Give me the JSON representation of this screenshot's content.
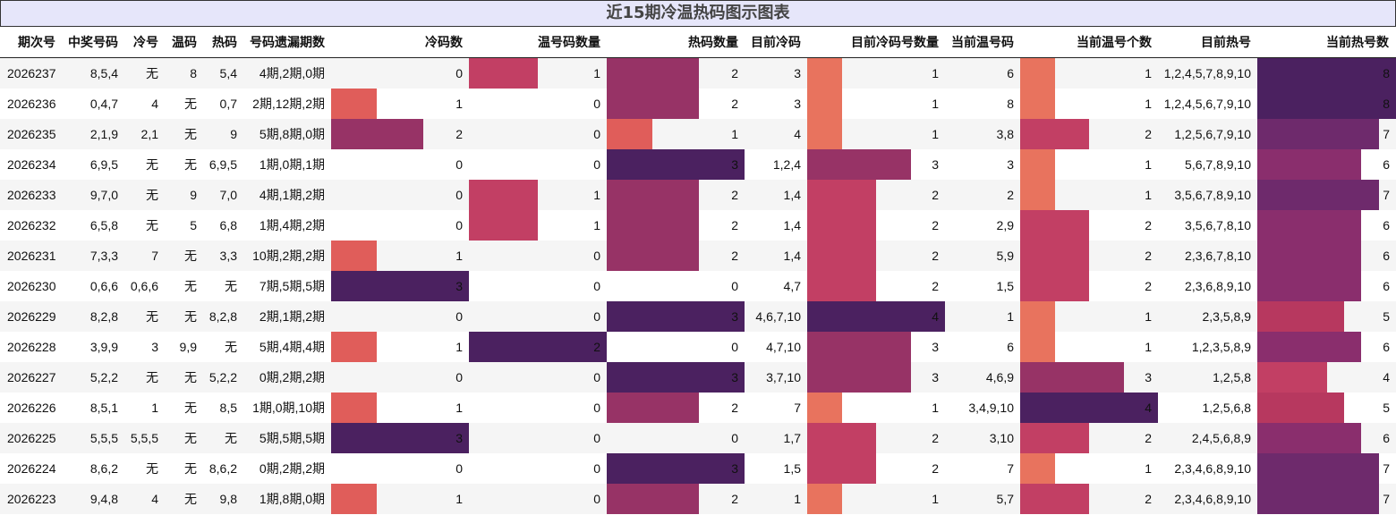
{
  "title": "近15期冷温热码图示图表",
  "headers": {
    "period": "期次号",
    "draw": "中奖号码",
    "cold": "冷号",
    "warm": "温码",
    "hot": "热码",
    "miss": "号码遗漏期数",
    "cold_count": "冷码数",
    "warm_count": "温号码数量",
    "hot_count": "热码数量",
    "cur_cold": "目前冷码",
    "cur_cold_count": "目前冷码号数量",
    "cur_warm": "当前温号码",
    "cur_warm_count": "当前温号个数",
    "cur_hot": "目前热号",
    "cur_hot_count": "当前热号数"
  },
  "colors": {
    "c1": "#e05d5a",
    "c1b": "#e8735e",
    "c2": "#c23f64",
    "c3": "#973366",
    "c4": "#4b2160",
    "hot6": "#8a2e6d",
    "hot7": "#6e2a6c",
    "hot8": "#4b2160",
    "hot5": "#b7385f",
    "hot4": "#c23f64",
    "title_bg": "#e6e6fa"
  },
  "rows": [
    {
      "period": "2026237",
      "draw": "8,5,4",
      "cold": "无",
      "warm": "8",
      "hot": "5,4",
      "miss": "4期,2期,0期",
      "cold_count": 0,
      "warm_count": 1,
      "hot_count": 2,
      "cur_cold": "3",
      "cur_cold_count": 1,
      "cur_warm": "6",
      "cur_warm_count": 1,
      "cur_hot": "1,2,4,5,7,8,9,10",
      "cur_hot_count": 8
    },
    {
      "period": "2026236",
      "draw": "0,4,7",
      "cold": "4",
      "warm": "无",
      "hot": "0,7",
      "miss": "2期,12期,2期",
      "cold_count": 1,
      "warm_count": 0,
      "hot_count": 2,
      "cur_cold": "3",
      "cur_cold_count": 1,
      "cur_warm": "8",
      "cur_warm_count": 1,
      "cur_hot": "1,2,4,5,6,7,9,10",
      "cur_hot_count": 8
    },
    {
      "period": "2026235",
      "draw": "2,1,9",
      "cold": "2,1",
      "warm": "无",
      "hot": "9",
      "miss": "5期,8期,0期",
      "cold_count": 2,
      "warm_count": 0,
      "hot_count": 1,
      "cur_cold": "4",
      "cur_cold_count": 1,
      "cur_warm": "3,8",
      "cur_warm_count": 2,
      "cur_hot": "1,2,5,6,7,9,10",
      "cur_hot_count": 7
    },
    {
      "period": "2026234",
      "draw": "6,9,5",
      "cold": "无",
      "warm": "无",
      "hot": "6,9,5",
      "miss": "1期,0期,1期",
      "cold_count": 0,
      "warm_count": 0,
      "hot_count": 3,
      "cur_cold": "1,2,4",
      "cur_cold_count": 3,
      "cur_warm": "3",
      "cur_warm_count": 1,
      "cur_hot": "5,6,7,8,9,10",
      "cur_hot_count": 6
    },
    {
      "period": "2026233",
      "draw": "9,7,0",
      "cold": "无",
      "warm": "9",
      "hot": "7,0",
      "miss": "4期,1期,2期",
      "cold_count": 0,
      "warm_count": 1,
      "hot_count": 2,
      "cur_cold": "1,4",
      "cur_cold_count": 2,
      "cur_warm": "2",
      "cur_warm_count": 1,
      "cur_hot": "3,5,6,7,8,9,10",
      "cur_hot_count": 7
    },
    {
      "period": "2026232",
      "draw": "6,5,8",
      "cold": "无",
      "warm": "5",
      "hot": "6,8",
      "miss": "1期,4期,2期",
      "cold_count": 0,
      "warm_count": 1,
      "hot_count": 2,
      "cur_cold": "1,4",
      "cur_cold_count": 2,
      "cur_warm": "2,9",
      "cur_warm_count": 2,
      "cur_hot": "3,5,6,7,8,10",
      "cur_hot_count": 6
    },
    {
      "period": "2026231",
      "draw": "7,3,3",
      "cold": "7",
      "warm": "无",
      "hot": "3,3",
      "miss": "10期,2期,2期",
      "cold_count": 1,
      "warm_count": 0,
      "hot_count": 2,
      "cur_cold": "1,4",
      "cur_cold_count": 2,
      "cur_warm": "5,9",
      "cur_warm_count": 2,
      "cur_hot": "2,3,6,7,8,10",
      "cur_hot_count": 6
    },
    {
      "period": "2026230",
      "draw": "0,6,6",
      "cold": "0,6,6",
      "warm": "无",
      "hot": "无",
      "miss": "7期,5期,5期",
      "cold_count": 3,
      "warm_count": 0,
      "hot_count": 0,
      "cur_cold": "4,7",
      "cur_cold_count": 2,
      "cur_warm": "1,5",
      "cur_warm_count": 2,
      "cur_hot": "2,3,6,8,9,10",
      "cur_hot_count": 6
    },
    {
      "period": "2026229",
      "draw": "8,2,8",
      "cold": "无",
      "warm": "无",
      "hot": "8,2,8",
      "miss": "2期,1期,2期",
      "cold_count": 0,
      "warm_count": 0,
      "hot_count": 3,
      "cur_cold": "4,6,7,10",
      "cur_cold_count": 4,
      "cur_warm": "1",
      "cur_warm_count": 1,
      "cur_hot": "2,3,5,8,9",
      "cur_hot_count": 5
    },
    {
      "period": "2026228",
      "draw": "3,9,9",
      "cold": "3",
      "warm": "9,9",
      "hot": "无",
      "miss": "5期,4期,4期",
      "cold_count": 1,
      "warm_count": 2,
      "hot_count": 0,
      "cur_cold": "4,7,10",
      "cur_cold_count": 3,
      "cur_warm": "6",
      "cur_warm_count": 1,
      "cur_hot": "1,2,3,5,8,9",
      "cur_hot_count": 6
    },
    {
      "period": "2026227",
      "draw": "5,2,2",
      "cold": "无",
      "warm": "无",
      "hot": "5,2,2",
      "miss": "0期,2期,2期",
      "cold_count": 0,
      "warm_count": 0,
      "hot_count": 3,
      "cur_cold": "3,7,10",
      "cur_cold_count": 3,
      "cur_warm": "4,6,9",
      "cur_warm_count": 3,
      "cur_hot": "1,2,5,8",
      "cur_hot_count": 4
    },
    {
      "period": "2026226",
      "draw": "8,5,1",
      "cold": "1",
      "warm": "无",
      "hot": "8,5",
      "miss": "1期,0期,10期",
      "cold_count": 1,
      "warm_count": 0,
      "hot_count": 2,
      "cur_cold": "7",
      "cur_cold_count": 1,
      "cur_warm": "3,4,9,10",
      "cur_warm_count": 4,
      "cur_hot": "1,2,5,6,8",
      "cur_hot_count": 5
    },
    {
      "period": "2026225",
      "draw": "5,5,5",
      "cold": "5,5,5",
      "warm": "无",
      "hot": "无",
      "miss": "5期,5期,5期",
      "cold_count": 3,
      "warm_count": 0,
      "hot_count": 0,
      "cur_cold": "1,7",
      "cur_cold_count": 2,
      "cur_warm": "3,10",
      "cur_warm_count": 2,
      "cur_hot": "2,4,5,6,8,9",
      "cur_hot_count": 6
    },
    {
      "period": "2026224",
      "draw": "8,6,2",
      "cold": "无",
      "warm": "无",
      "hot": "8,6,2",
      "miss": "0期,2期,2期",
      "cold_count": 0,
      "warm_count": 0,
      "hot_count": 3,
      "cur_cold": "1,5",
      "cur_cold_count": 2,
      "cur_warm": "7",
      "cur_warm_count": 1,
      "cur_hot": "2,3,4,6,8,9,10",
      "cur_hot_count": 7
    },
    {
      "period": "2026223",
      "draw": "9,4,8",
      "cold": "4",
      "warm": "无",
      "hot": "9,8",
      "miss": "1期,8期,0期",
      "cold_count": 1,
      "warm_count": 0,
      "hot_count": 2,
      "cur_cold": "1",
      "cur_cold_count": 1,
      "cur_warm": "5,7",
      "cur_warm_count": 2,
      "cur_hot": "2,3,4,6,8,9,10",
      "cur_hot_count": 7
    }
  ]
}
